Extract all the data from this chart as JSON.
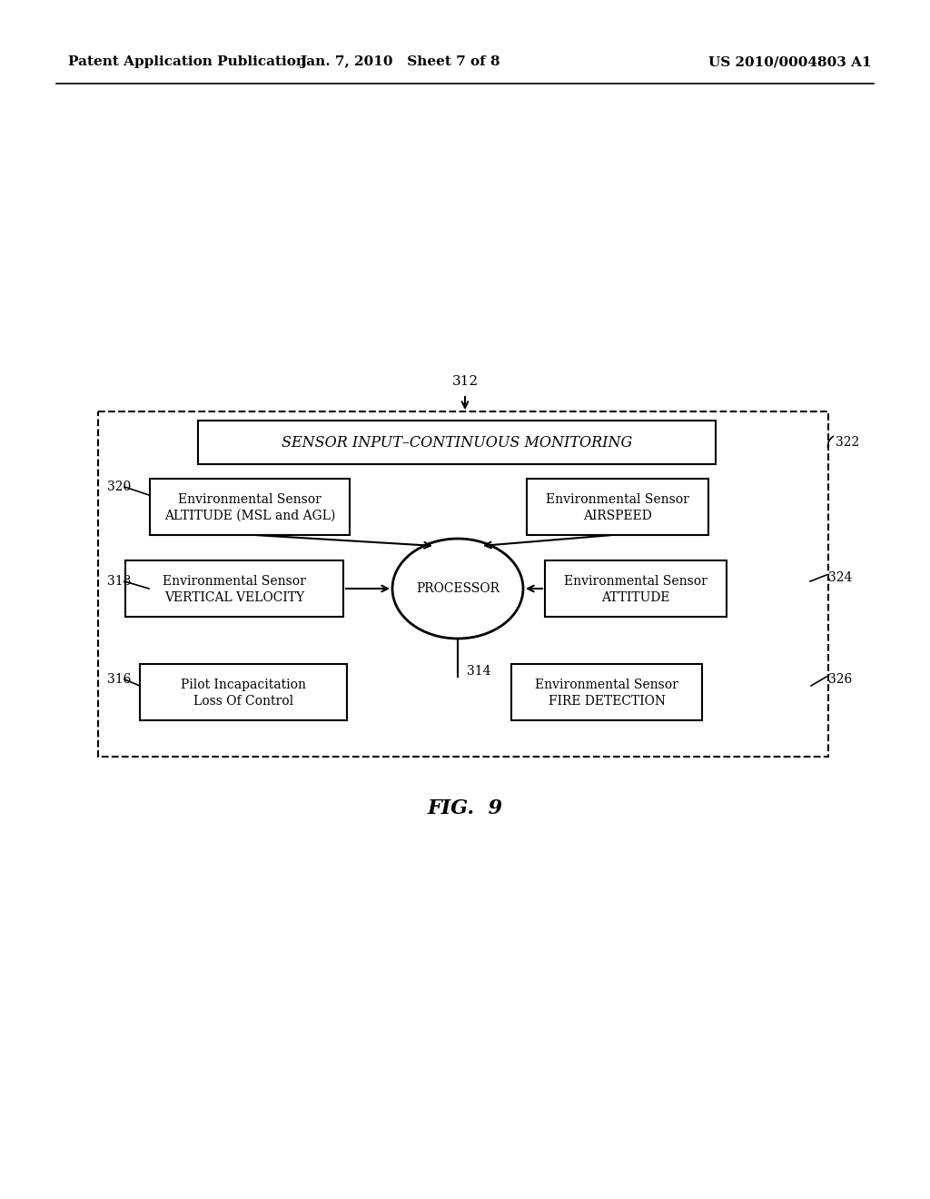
{
  "bg_color": "#ffffff",
  "header_left": "Patent Application Publication",
  "header_mid": "Jan. 7, 2010   Sheet 7 of 8",
  "header_right": "US 2010/0004803 A1",
  "fig_label": "FIG.  9",
  "label_312": "312",
  "label_314": "314",
  "label_316": "316",
  "label_318": "318",
  "label_320": "320",
  "label_322": "322",
  "label_324": "324",
  "label_326": "326",
  "top_box_text": "SENSOR INPUT–CONTINUOUS MONITORING",
  "box_altitude_line1": "Environmental Sensor",
  "box_altitude_line2": "ALTITUDE (MSL and AGL)",
  "box_airspeed_line1": "Environmental Sensor",
  "box_airspeed_line2": "AIRSPEED",
  "box_vert_vel_line1": "Environmental Sensor",
  "box_vert_vel_line2": "VERTICAL VELOCITY",
  "box_attitude_line1": "Environmental Sensor",
  "box_attitude_line2": "ATTITUDE",
  "box_pilot_line1": "Pilot Incapacitation",
  "box_pilot_line2": "Loss Of Control",
  "box_fire_line1": "Environmental Sensor",
  "box_fire_line2": "FIRE DETECTION",
  "processor_text": "PROCESSOR"
}
